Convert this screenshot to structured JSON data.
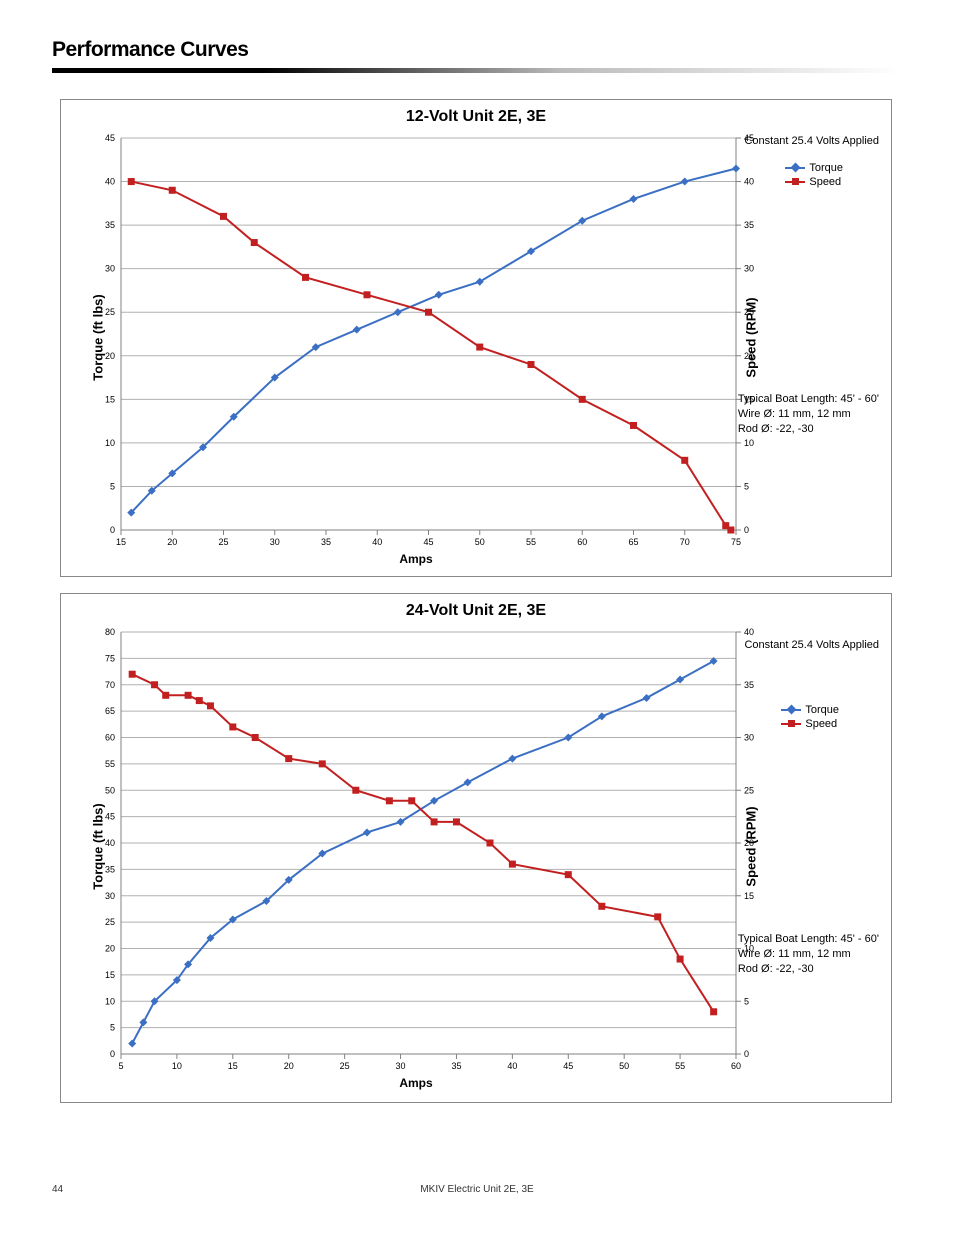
{
  "page": {
    "section_title": "Performance Curves",
    "footer_center": "MKIV Electric Unit 2E, 3E",
    "footer_page": "44"
  },
  "chart1": {
    "title": "12-Volt Unit 2E, 3E",
    "xlabel": "Amps",
    "ylabel": "Torque (ft lbs)",
    "y2label": "Speed (RPM)",
    "xlim": [
      15,
      75
    ],
    "xtick_step": 5,
    "ylim": [
      0,
      45
    ],
    "ytick_step": 5,
    "y2lim": [
      0,
      45
    ],
    "y2tick_step": 5,
    "grid_color": "#b0b0b0",
    "axis_color": "#808080",
    "background_color": "#ffffff",
    "tick_fontsize": 9,
    "series": [
      {
        "name": "Torque",
        "label": "Torque",
        "color": "#3b6fc3",
        "marker": "diamond",
        "line_width": 2,
        "x": [
          16,
          18,
          20,
          23,
          26,
          30,
          34,
          38,
          42,
          46,
          50,
          55,
          60,
          65,
          70,
          75
        ],
        "y": [
          2,
          4.5,
          6.5,
          9.5,
          13,
          17.5,
          21,
          23,
          25,
          27,
          28.5,
          32,
          35.5,
          38,
          40,
          41.5
        ]
      },
      {
        "name": "Speed",
        "label": "Speed",
        "color": "#c22020",
        "marker": "square",
        "line_width": 2,
        "x": [
          16,
          20,
          25,
          28,
          33,
          39,
          45,
          50,
          55,
          60,
          65,
          70,
          74,
          74.5
        ],
        "y": [
          40,
          39,
          36,
          33,
          29,
          27,
          25,
          21,
          19,
          15,
          12,
          8,
          0.5,
          0
        ]
      }
    ],
    "notes": {
      "top": "Constant 25.4 Volts Applied",
      "boat": "Typical Boat Length: 45' - 60'",
      "wire": "Wire Ø: 11 mm, 12 mm",
      "rod": "Rod Ø: -22, -30"
    },
    "legend": {
      "torque": "Torque",
      "speed": "Speed"
    }
  },
  "chart2": {
    "title": "24-Volt Unit 2E, 3E",
    "xlabel": "Amps",
    "ylabel": "Torque (ft lbs)",
    "y2label": "Speed (RPM)",
    "xlim": [
      5,
      60
    ],
    "xtick_step": 5,
    "ylim": [
      0,
      80
    ],
    "ytick_step": 5,
    "y2lim": [
      0,
      40
    ],
    "y2tick_step": 5,
    "grid_color": "#b0b0b0",
    "axis_color": "#808080",
    "background_color": "#ffffff",
    "tick_fontsize": 9,
    "series": [
      {
        "name": "Torque",
        "label": "Torque",
        "color": "#3b6fc3",
        "marker": "diamond",
        "line_width": 2,
        "x": [
          6,
          7,
          8,
          10,
          11,
          13,
          15,
          18,
          20,
          23,
          27,
          30,
          33,
          36,
          40,
          45,
          48,
          52,
          55,
          58
        ],
        "y": [
          2,
          6,
          10,
          14,
          17,
          22,
          25.5,
          29,
          33,
          38,
          42,
          44,
          48,
          51.5,
          56,
          60,
          64,
          67.5,
          71,
          74.5
        ]
      },
      {
        "name": "Speed",
        "label": "Speed",
        "color": "#c22020",
        "marker": "square",
        "line_width": 2,
        "x": [
          6,
          8,
          9,
          11,
          12,
          13,
          15,
          17,
          20,
          23,
          26,
          29,
          31,
          33,
          35,
          38,
          40,
          45,
          48,
          53,
          55,
          58
        ],
        "y": [
          36,
          35,
          34,
          34,
          33.5,
          33,
          31,
          30,
          28,
          27.5,
          25,
          24,
          24,
          22,
          22,
          20,
          18,
          17,
          14,
          13,
          9,
          4
        ]
      }
    ],
    "notes": {
      "top": "Constant 25.4 Volts Applied",
      "boat": "Typical Boat Length: 45' - 60'",
      "wire": "Wire Ø: 11 mm, 12 mm",
      "rod": "Rod Ø: -22, -30"
    },
    "legend": {
      "torque": "Torque",
      "speed": "Speed"
    }
  }
}
